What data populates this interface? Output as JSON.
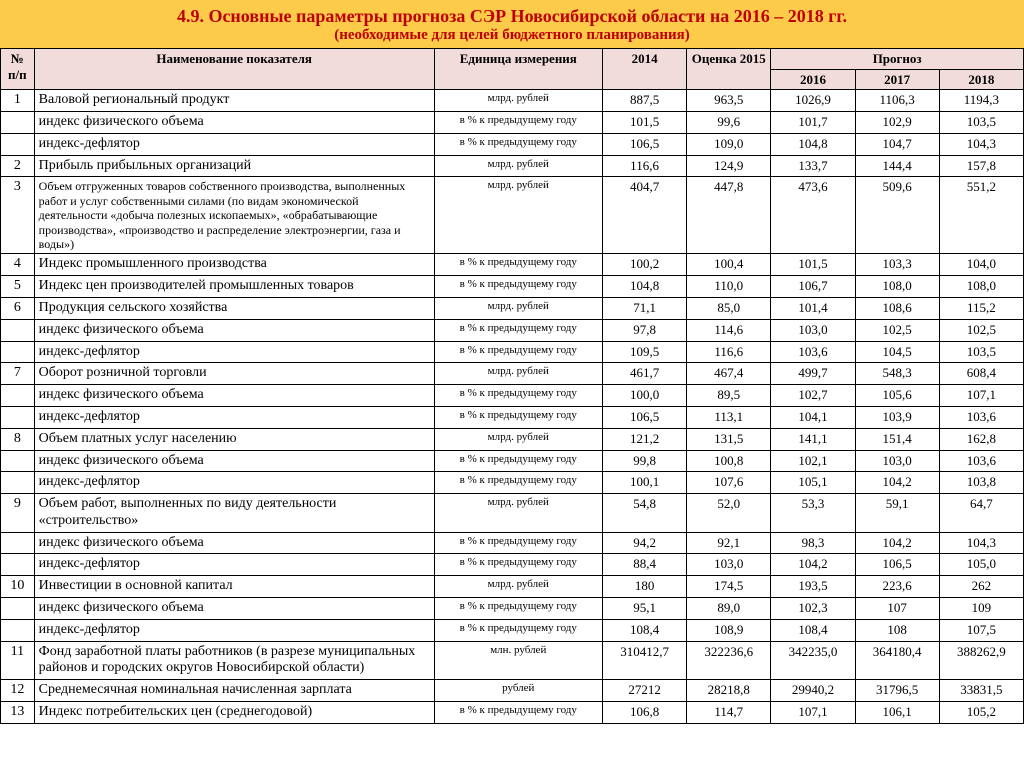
{
  "header": {
    "title": "4.9. Основные параметры прогноза СЭР Новосибирской области на 2016 – 2018 гг.",
    "subtitle": "(необходимые для целей бюджетного планирования)"
  },
  "columns": {
    "num": "№ п/п",
    "name": "Наименование показателя",
    "unit": "Единица измерения",
    "y2014": "2014",
    "y2015": "Оценка 2015",
    "forecast": "Прогноз",
    "y2016": "2016",
    "y2017": "2017",
    "y2018": "2018"
  },
  "units": {
    "mlrd": "млрд. рублей",
    "mln": "млн. рублей",
    "rub": "рублей",
    "pct": "в % к предыдущему году"
  },
  "rows": [
    {
      "n": "1",
      "name": "Валовой региональный продукт",
      "u": "mlrd",
      "v": [
        "887,5",
        "963,5",
        "1026,9",
        "1106,3",
        "1194,3"
      ]
    },
    {
      "n": "",
      "name": "индекс физического объема",
      "u": "pct",
      "v": [
        "101,5",
        "99,6",
        "101,7",
        "102,9",
        "103,5"
      ]
    },
    {
      "n": "",
      "name": "индекс-дефлятор",
      "u": "pct",
      "v": [
        "106,5",
        "109,0",
        "104,8",
        "104,7",
        "104,3"
      ]
    },
    {
      "n": "2",
      "name": "Прибыль прибыльных организаций",
      "u": "mlrd",
      "v": [
        "116,6",
        "124,9",
        "133,7",
        "144,4",
        "157,8"
      ]
    },
    {
      "n": "3",
      "name": "Объем отгруженных товаров собственного производства, выполненных работ и услуг собственными силами (по видам экономической деятельности «добыча полезных ископаемых», «обрабатывающие производства», «производство и распределение электроэнергии, газа и воды»)",
      "u": "mlrd",
      "small": true,
      "v": [
        "404,7",
        "447,8",
        "473,6",
        "509,6",
        "551,2"
      ]
    },
    {
      "n": "4",
      "name": "Индекс промышленного производства",
      "u": "pct",
      "v": [
        "100,2",
        "100,4",
        "101,5",
        "103,3",
        "104,0"
      ]
    },
    {
      "n": "5",
      "name": "Индекс цен производителей промышленных товаров",
      "u": "pct",
      "v": [
        "104,8",
        "110,0",
        "106,7",
        "108,0",
        "108,0"
      ]
    },
    {
      "n": "6",
      "name": "Продукция сельского хозяйства",
      "u": "mlrd",
      "v": [
        "71,1",
        "85,0",
        "101,4",
        "108,6",
        "115,2"
      ]
    },
    {
      "n": "",
      "name": "индекс физического объема",
      "u": "pct",
      "v": [
        "97,8",
        "114,6",
        "103,0",
        "102,5",
        "102,5"
      ]
    },
    {
      "n": "",
      "name": "индекс-дефлятор",
      "u": "pct",
      "cut": true,
      "v": [
        "109,5",
        "116,6",
        "103,6",
        "104,5",
        "103,5"
      ]
    },
    {
      "n": "7",
      "name": "Оборот розничной торговли",
      "u": "mlrd",
      "v": [
        "461,7",
        "467,4",
        "499,7",
        "548,3",
        "608,4"
      ]
    },
    {
      "n": "",
      "name": "индекс физического объема",
      "u": "pct",
      "v": [
        "100,0",
        "89,5",
        "102,7",
        "105,6",
        "107,1"
      ]
    },
    {
      "n": "",
      "name": "индекс-дефлятор",
      "u": "pct",
      "v": [
        "106,5",
        "113,1",
        "104,1",
        "103,9",
        "103,6"
      ]
    },
    {
      "n": "8",
      "name": "Объем платных услуг населению",
      "u": "mlrd",
      "v": [
        "121,2",
        "131,5",
        "141,1",
        "151,4",
        "162,8"
      ]
    },
    {
      "n": "",
      "name": "индекс физического объема",
      "u": "pct",
      "v": [
        "99,8",
        "100,8",
        "102,1",
        "103,0",
        "103,6"
      ]
    },
    {
      "n": "",
      "name": "индекс-дефлятор",
      "u": "pct",
      "v": [
        "100,1",
        "107,6",
        "105,1",
        "104,2",
        "103,8"
      ]
    },
    {
      "n": "9",
      "name": "Объем работ, выполненных по виду деятельности «строительство»",
      "u": "mlrd",
      "v": [
        "54,8",
        "52,0",
        "53,3",
        "59,1",
        "64,7"
      ]
    },
    {
      "n": "",
      "name": "индекс физического объема",
      "u": "pct",
      "v": [
        "94,2",
        "92,1",
        "98,3",
        "104,2",
        "104,3"
      ]
    },
    {
      "n": "",
      "name": "индекс-дефлятор",
      "u": "pct",
      "v": [
        "88,4",
        "103,0",
        "104,2",
        "106,5",
        "105,0"
      ]
    },
    {
      "n": "10",
      "name": "Инвестиции в основной капитал",
      "u": "mlrd",
      "v": [
        "180",
        "174,5",
        "193,5",
        "223,6",
        "262"
      ]
    },
    {
      "n": "",
      "name": "индекс физического объема",
      "u": "pct",
      "v": [
        "95,1",
        "89,0",
        "102,3",
        "107",
        "109"
      ]
    },
    {
      "n": "",
      "name": "индекс-дефлятор",
      "u": "pct",
      "v": [
        "108,4",
        "108,9",
        "108,4",
        "108",
        "107,5"
      ]
    },
    {
      "n": "11",
      "name": "Фонд заработной платы работников (в разрезе муниципальных районов и городских округов Новосибирской области)",
      "u": "mln",
      "v": [
        "310412,7",
        "322236,6",
        "342235,0",
        "364180,4",
        "388262,9"
      ]
    },
    {
      "n": "12",
      "name": "Среднемесячная номинальная начисленная зарплата",
      "u": "rub",
      "v": [
        "27212",
        "28218,8",
        "29940,2",
        "31796,5",
        "33831,5"
      ]
    },
    {
      "n": "13",
      "name": "Индекс потребительских цен (среднегодовой)",
      "u": "pct",
      "cut": true,
      "v": [
        "106,8",
        "114,7",
        "107,1",
        "106,1",
        "105,2"
      ]
    }
  ]
}
